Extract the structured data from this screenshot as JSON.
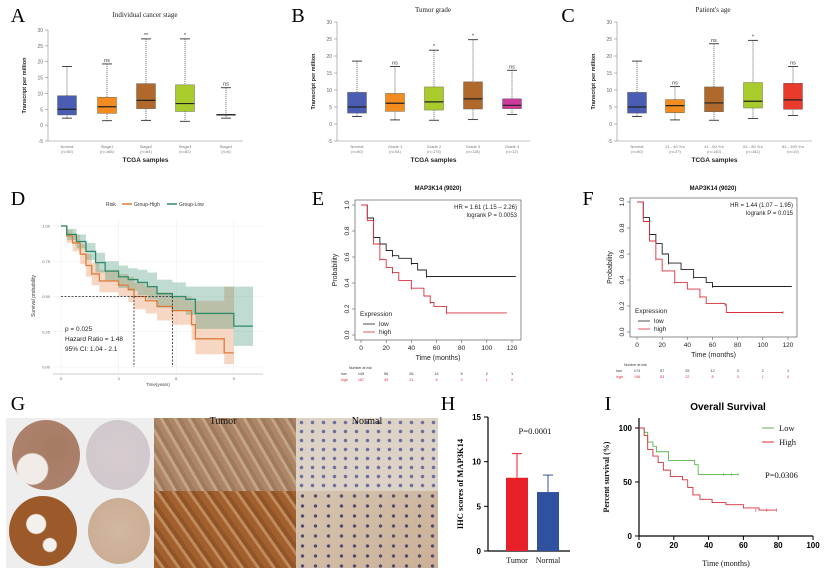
{
  "figure": {
    "panel_letters": [
      "A",
      "B",
      "C",
      "D",
      "E",
      "F",
      "G",
      "H",
      "I"
    ],
    "colors": {
      "normal": "#4b5cb3",
      "orange": "#f28c1e",
      "brown": "#b0692b",
      "lime": "#a9cc2c",
      "magenta": "#cc3a9a",
      "red": "#e83b2b",
      "km_low_D": "#2e8b6a",
      "km_high_D": "#e07b39",
      "km_low": "#222222",
      "km_high": "#d9303c",
      "bar_tumor": "#e8202a",
      "bar_normal": "#3050a0",
      "os_low": "#59b548",
      "os_high": "#d7303c"
    }
  },
  "chart_data": [
    {
      "id": "A",
      "type": "boxplot",
      "title": "Individual cancer stage",
      "xlabel": "TCGA samples",
      "ylabel": "Transcript per million",
      "ylim": [
        -5,
        30
      ],
      "yticks": [
        "-5",
        "0",
        "5",
        "10",
        "15",
        "20",
        "25",
        "30"
      ],
      "categories": [
        {
          "name": "Normal",
          "n": "(n=50)",
          "min": 2.2,
          "q1": 3.2,
          "median": 5.0,
          "q3": 9.3,
          "max": 18.5,
          "sig": "",
          "color": "#4b5cb3"
        },
        {
          "name": "Stage1",
          "n": "(n=168)",
          "min": 1.4,
          "q1": 3.7,
          "median": 5.8,
          "q3": 8.8,
          "max": 19.3,
          "sig": "ns",
          "color": "#f28c1e"
        },
        {
          "name": "Stage2",
          "n": "(n=84)",
          "min": 1.5,
          "q1": 5.2,
          "median": 7.8,
          "q3": 13.1,
          "max": 27.2,
          "sig": "**",
          "color": "#b0692b"
        },
        {
          "name": "Stage3",
          "n": "(n=82)",
          "min": 1.2,
          "q1": 4.3,
          "median": 6.8,
          "q3": 12.7,
          "max": 27.2,
          "sig": "*",
          "color": "#a9cc2c"
        },
        {
          "name": "Stage4",
          "n": "(n=6)",
          "min": 2.2,
          "q1": 3.2,
          "median": 3.3,
          "q3": 3.4,
          "max": 11.8,
          "sig": "ns",
          "color": "#cc3a9a"
        }
      ]
    },
    {
      "id": "B",
      "type": "boxplot",
      "title": "Tumor grade",
      "xlabel": "TCGA samples",
      "ylabel": "Transcript per million",
      "ylim": [
        -5,
        30
      ],
      "yticks": [
        "-5",
        "0",
        "5",
        "10",
        "15",
        "20",
        "25",
        "30"
      ],
      "categories": [
        {
          "name": "Normal",
          "n": "(n=50)",
          "min": 2.2,
          "q1": 3.2,
          "median": 5.0,
          "q3": 9.3,
          "max": 18.5,
          "sig": "",
          "color": "#4b5cb3"
        },
        {
          "name": "Grade 1",
          "n": "(n=54)",
          "min": 1.2,
          "q1": 3.7,
          "median": 6.1,
          "q3": 9.0,
          "max": 16.9,
          "sig": "ns",
          "color": "#f28c1e"
        },
        {
          "name": "Grade 2",
          "n": "(n=175)",
          "min": 1.1,
          "q1": 4.1,
          "median": 6.5,
          "q3": 10.9,
          "max": 21.7,
          "sig": "*",
          "color": "#a9cc2c"
        },
        {
          "name": "Grade 3",
          "n": "(n=118)",
          "min": 1.3,
          "q1": 4.4,
          "median": 7.4,
          "q3": 12.4,
          "max": 24.8,
          "sig": "*",
          "color": "#b0692b"
        },
        {
          "name": "Grade 4",
          "n": "(n=12)",
          "min": 2.8,
          "q1": 4.5,
          "median": 5.5,
          "q3": 7.4,
          "max": 15.8,
          "sig": "ns",
          "color": "#cc3a9a"
        }
      ]
    },
    {
      "id": "C",
      "type": "boxplot",
      "title": "Patient's age",
      "xlabel": "TCGA samples",
      "ylabel": "Transcript per million",
      "ylim": [
        -5,
        30
      ],
      "yticks": [
        "-5",
        "0",
        "5",
        "10",
        "15",
        "20",
        "25",
        "30"
      ],
      "categories": [
        {
          "name": "Normal",
          "n": "(n=50)",
          "min": 2.2,
          "q1": 3.2,
          "median": 5.0,
          "q3": 9.3,
          "max": 18.5,
          "sig": "",
          "color": "#4b5cb3"
        },
        {
          "name": "21 - 40 Yrs",
          "n": "(n=27)",
          "min": 1.2,
          "q1": 3.3,
          "median": 5.4,
          "q3": 7.2,
          "max": 11.0,
          "sig": "ns",
          "color": "#f28c1e"
        },
        {
          "name": "41 - 60 Yrs",
          "n": "(n=140)",
          "min": 1.1,
          "q1": 3.6,
          "median": 6.2,
          "q3": 10.9,
          "max": 23.6,
          "sig": "ns",
          "color": "#b0692b"
        },
        {
          "name": "61 - 80 Yrs",
          "n": "(n=181)",
          "min": 1.6,
          "q1": 4.7,
          "median": 6.7,
          "q3": 12.2,
          "max": 24.6,
          "sig": "*",
          "color": "#a9cc2c"
        },
        {
          "name": "81 - 100 Yrs",
          "n": "(n=10)",
          "min": 2.5,
          "q1": 4.3,
          "median": 7.1,
          "q3": 12.0,
          "max": 16.9,
          "sig": "ns",
          "color": "#e83b2b"
        }
      ]
    },
    {
      "id": "D",
      "type": "line",
      "subtype": "kaplan-meier",
      "xlabel": "Time(years)",
      "ylabel": "Survival probability",
      "xlim": [
        0,
        10
      ],
      "ylim": [
        0,
        1
      ],
      "xticks": [
        "0",
        "3",
        "6",
        "9"
      ],
      "yticks": [
        "0.00",
        "0.25",
        "0.50",
        "0.75",
        "1.00"
      ],
      "legend_title": "Risk",
      "legend_position": "top",
      "annotations": [
        "p = 0.025",
        "Hazard Ratio = 1.48",
        "95% CI: 1.04 - 2.1"
      ],
      "median_survival": [
        3.8,
        5.8
      ],
      "series": [
        {
          "name": "Group-High",
          "color": "#e07b39",
          "points": [
            [
              0,
              1
            ],
            [
              0.3,
              0.93
            ],
            [
              0.6,
              0.88
            ],
            [
              1,
              0.8
            ],
            [
              1.3,
              0.72
            ],
            [
              1.6,
              0.66
            ],
            [
              2,
              0.61
            ],
            [
              3,
              0.58
            ],
            [
              3.5,
              0.55
            ],
            [
              3.8,
              0.5
            ],
            [
              4.4,
              0.47
            ],
            [
              5,
              0.43
            ],
            [
              5.8,
              0.4
            ],
            [
              6.8,
              0.3
            ],
            [
              7,
              0.2
            ],
            [
              8.5,
              0.1
            ],
            [
              9,
              0.1
            ]
          ],
          "lower": [
            1,
            0.88,
            0.82,
            0.73,
            0.64,
            0.58,
            0.53,
            0.5,
            0.46,
            0.41,
            0.38,
            0.33,
            0.3,
            0.19,
            0.09,
            0.02,
            0.02
          ],
          "upper": [
            1,
            0.97,
            0.94,
            0.87,
            0.8,
            0.74,
            0.69,
            0.66,
            0.64,
            0.6,
            0.57,
            0.53,
            0.5,
            0.47,
            0.47,
            0.57,
            0.57
          ]
        },
        {
          "name": "Group-Low",
          "color": "#2e8b6a",
          "points": [
            [
              0,
              1
            ],
            [
              0.3,
              0.94
            ],
            [
              0.8,
              0.89
            ],
            [
              1.3,
              0.82
            ],
            [
              1.8,
              0.74
            ],
            [
              2.3,
              0.68
            ],
            [
              3,
              0.64
            ],
            [
              3.5,
              0.62
            ],
            [
              4,
              0.6
            ],
            [
              4.5,
              0.57
            ],
            [
              5,
              0.52
            ],
            [
              5.8,
              0.5
            ],
            [
              6.5,
              0.48
            ],
            [
              7,
              0.38
            ],
            [
              9,
              0.29
            ],
            [
              10,
              0.29
            ]
          ],
          "lower": [
            1,
            0.9,
            0.84,
            0.76,
            0.67,
            0.61,
            0.56,
            0.54,
            0.51,
            0.48,
            0.42,
            0.4,
            0.37,
            0.27,
            0.15,
            0.15
          ],
          "upper": [
            1,
            0.98,
            0.94,
            0.88,
            0.81,
            0.75,
            0.72,
            0.7,
            0.69,
            0.67,
            0.62,
            0.6,
            0.57,
            0.57,
            0.57,
            0.57
          ]
        }
      ]
    },
    {
      "id": "E",
      "type": "line",
      "subtype": "kaplan-meier",
      "title": "MAP3K14 (9020)",
      "xlabel": "Time (months)",
      "ylabel": "Probability",
      "xlim": [
        0,
        120
      ],
      "ylim": [
        0,
        1
      ],
      "xticks": [
        "0",
        "20",
        "40",
        "60",
        "80",
        "100",
        "120"
      ],
      "yticks": [
        "0.0",
        "0.2",
        "0.4",
        "0.6",
        "0.8",
        "1.0"
      ],
      "annotations": [
        "HR = 1.61 (1.15 – 2.26)",
        "logrank P = 0.0053"
      ],
      "legend_title": "Expression",
      "legend_position": "bottom-left",
      "risk_table": {
        "title": "Number at risk",
        "rows": [
          {
            "label": "low",
            "values": [
              "149",
              "56",
              "26",
              "14",
              "5",
              "2",
              "1"
            ]
          },
          {
            "label": "high",
            "values": [
              "167",
              "49",
              "21",
              "8",
              "2",
              "1",
              "0"
            ]
          }
        ]
      },
      "series": [
        {
          "name": "low",
          "color": "#222222",
          "points": [
            [
              0,
              1
            ],
            [
              5,
              0.9
            ],
            [
              10,
              0.75
            ],
            [
              15,
              0.7
            ],
            [
              20,
              0.65
            ],
            [
              25,
              0.61
            ],
            [
              30,
              0.59
            ],
            [
              40,
              0.55
            ],
            [
              45,
              0.5
            ],
            [
              52,
              0.45
            ],
            [
              123,
              0.45
            ]
          ]
        },
        {
          "name": "high",
          "color": "#d9303c",
          "points": [
            [
              0,
              1
            ],
            [
              5,
              0.88
            ],
            [
              10,
              0.7
            ],
            [
              15,
              0.58
            ],
            [
              20,
              0.52
            ],
            [
              25,
              0.48
            ],
            [
              30,
              0.42
            ],
            [
              40,
              0.36
            ],
            [
              50,
              0.3
            ],
            [
              55,
              0.25
            ],
            [
              58,
              0.22
            ],
            [
              68,
              0.17
            ],
            [
              116,
              0.17
            ]
          ]
        }
      ]
    },
    {
      "id": "F",
      "type": "line",
      "subtype": "kaplan-meier",
      "title": "MAP3K14 (9020)",
      "xlabel": "Time (months)",
      "ylabel": "Probability",
      "xlim": [
        0,
        120
      ],
      "ylim": [
        0,
        1
      ],
      "xticks": [
        "0",
        "20",
        "40",
        "60",
        "80",
        "100",
        "120"
      ],
      "yticks": [
        "0.0",
        "0.2",
        "0.4",
        "0.6",
        "0.8",
        "1.0"
      ],
      "annotations": [
        "HR = 1.44 (1.07 – 1.95)",
        "logrank P = 0.015"
      ],
      "legend_title": "Expression",
      "legend_position": "bottom-left",
      "risk_table": {
        "title": "Number at risk",
        "rows": [
          {
            "label": "low",
            "values": [
              "174",
              "57",
              "25",
              "12",
              "3",
              "2",
              "1"
            ]
          },
          {
            "label": "high",
            "values": [
              "196",
              "53",
              "22",
              "8",
              "3",
              "1",
              "0"
            ]
          }
        ]
      },
      "series": [
        {
          "name": "low",
          "color": "#222222",
          "points": [
            [
              0,
              1
            ],
            [
              5,
              0.88
            ],
            [
              10,
              0.75
            ],
            [
              15,
              0.68
            ],
            [
              20,
              0.6
            ],
            [
              25,
              0.53
            ],
            [
              35,
              0.48
            ],
            [
              45,
              0.42
            ],
            [
              55,
              0.38
            ],
            [
              60,
              0.35
            ],
            [
              123,
              0.35
            ]
          ]
        },
        {
          "name": "high",
          "color": "#d9303c",
          "points": [
            [
              0,
              1
            ],
            [
              5,
              0.85
            ],
            [
              10,
              0.7
            ],
            [
              15,
              0.56
            ],
            [
              20,
              0.47
            ],
            [
              30,
              0.38
            ],
            [
              40,
              0.33
            ],
            [
              50,
              0.27
            ],
            [
              55,
              0.22
            ],
            [
              70,
              0.21
            ],
            [
              71,
              0.15
            ],
            [
              116,
              0.15
            ]
          ]
        }
      ]
    },
    {
      "id": "H",
      "type": "bar",
      "ylabel": "IHC scores of MAP3K14",
      "ylim": [
        0,
        15
      ],
      "yticks": [
        "0",
        "5",
        "10",
        "15"
      ],
      "annotation": "P=0.0001",
      "categories": [
        "Tumor",
        "Normal"
      ],
      "values": [
        8.2,
        6.6
      ],
      "error_upper": [
        10.9,
        8.5
      ],
      "colors": [
        "#e8202a",
        "#3050a0"
      ]
    },
    {
      "id": "I",
      "type": "line",
      "subtype": "kaplan-meier",
      "title": "Overall Survival",
      "xlabel": "Time (months)",
      "ylabel": "Percent survival (%)",
      "xlim": [
        0,
        100
      ],
      "ylim": [
        0,
        100
      ],
      "xticks": [
        "0",
        "20",
        "40",
        "60",
        "80",
        "100"
      ],
      "yticks": [
        "0",
        "50",
        "100"
      ],
      "annotation": "P=0.0306",
      "legend_position": "top-right",
      "series": [
        {
          "name": "Low",
          "color": "#59b548",
          "points": [
            [
              0,
              100
            ],
            [
              3,
              96
            ],
            [
              5,
              87
            ],
            [
              8,
              83
            ],
            [
              10,
              78
            ],
            [
              17,
              70
            ],
            [
              32,
              66
            ],
            [
              34,
              57
            ],
            [
              57,
              57
            ]
          ]
        },
        {
          "name": "High",
          "color": "#d7303c",
          "points": [
            [
              0,
              100
            ],
            [
              3,
              93
            ],
            [
              5,
              80
            ],
            [
              8,
              74
            ],
            [
              11,
              68
            ],
            [
              14,
              61
            ],
            [
              18,
              55
            ],
            [
              25,
              52
            ],
            [
              28,
              45
            ],
            [
              31,
              38
            ],
            [
              35,
              34
            ],
            [
              42,
              31
            ],
            [
              50,
              29
            ],
            [
              60,
              26
            ],
            [
              69,
              24
            ],
            [
              79,
              24
            ]
          ]
        }
      ]
    }
  ],
  "ihc": {
    "tumor_label": "Tumor",
    "normal_label": "Normal"
  }
}
